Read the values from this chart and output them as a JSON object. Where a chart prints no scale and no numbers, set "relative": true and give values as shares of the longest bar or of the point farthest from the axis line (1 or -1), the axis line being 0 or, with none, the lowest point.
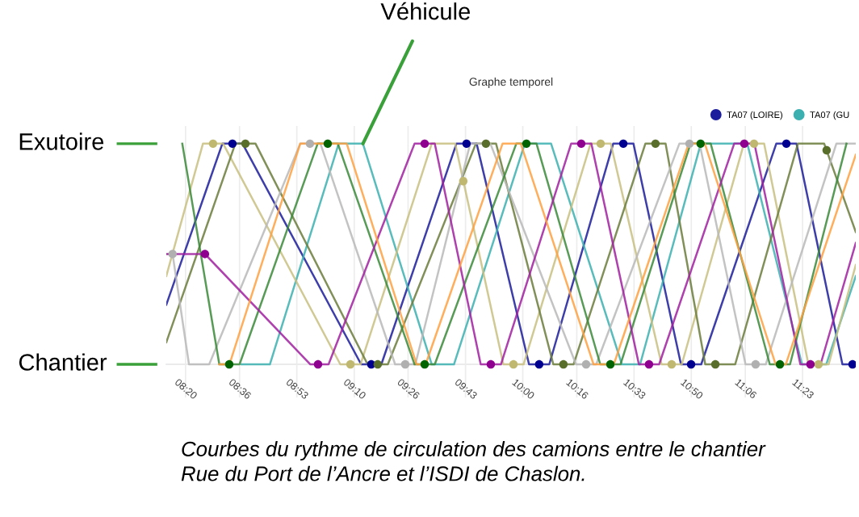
{
  "chart_data": {
    "type": "line",
    "title": "Graphe temporel",
    "xlim": [
      8.238,
      11.646
    ],
    "xticks": [
      {
        "value": 8.333,
        "label": "08:20"
      },
      {
        "value": 8.6,
        "label": "08:36"
      },
      {
        "value": 8.883,
        "label": "08:53"
      },
      {
        "value": 9.167,
        "label": "09:10"
      },
      {
        "value": 9.433,
        "label": "09:26"
      },
      {
        "value": 9.717,
        "label": "09:43"
      },
      {
        "value": 10.0,
        "label": "10:00"
      },
      {
        "value": 10.267,
        "label": "10:16"
      },
      {
        "value": 10.55,
        "label": "10:33"
      },
      {
        "value": 10.833,
        "label": "10:50"
      },
      {
        "value": 11.1,
        "label": "11:06"
      },
      {
        "value": 11.383,
        "label": "11:23"
      }
    ],
    "relative": true,
    "grid": true,
    "legend": "top right",
    "series": [
      {
        "name": "TA07 (LOIRE)",
        "color": "#1c1c9c",
        "x": [
          8.238,
          8.515,
          8.615,
          9.201,
          9.301,
          9.672,
          9.772,
          10.031,
          10.131,
          10.447,
          10.547,
          10.782,
          10.882,
          11.253,
          11.353,
          11.58,
          11.646
        ],
        "values": [
          0.27,
          1,
          1,
          0,
          0,
          1,
          1,
          0,
          0,
          1,
          1,
          0,
          0,
          1,
          1,
          0,
          0
        ]
      },
      {
        "name": "TA07 (GU",
        "color": "#3cb0b0",
        "x": [
          8.61,
          8.75,
          9.09,
          9.21,
          9.55,
          9.66,
          10.01,
          10.14,
          10.49,
          10.58,
          10.88,
          11.11,
          11.38,
          11.5,
          11.646
        ],
        "values": [
          0,
          0,
          1,
          1,
          0,
          0,
          1,
          1,
          0,
          0,
          1,
          1,
          0,
          0,
          0.4
        ]
      },
      {
        "color": "#c8c080",
        "x": [
          8.238,
          8.419,
          8.519,
          9.098,
          9.198,
          9.55,
          9.666,
          9.904,
          10.004,
          10.335,
          10.435,
          10.686,
          10.786,
          11.093,
          11.193,
          11.412,
          11.512,
          11.646
        ],
        "values": [
          0.4,
          1,
          1,
          0,
          0,
          1,
          1,
          0,
          0,
          1,
          1,
          0,
          0,
          1,
          1,
          0,
          0,
          0.45
        ]
      },
      {
        "color": "#6b7d3c",
        "x": [
          8.238,
          8.579,
          8.679,
          9.233,
          9.333,
          9.768,
          9.868,
          10.151,
          10.251,
          10.606,
          10.706,
          10.902,
          11.05,
          11.36,
          11.49,
          11.646
        ],
        "values": [
          0.1,
          1,
          1,
          0,
          0,
          1,
          1,
          0,
          0,
          1,
          1,
          0,
          0,
          1,
          1,
          0.6
        ]
      },
      {
        "color": "#b8b8b8",
        "x": [
          8.238,
          8.269,
          8.35,
          8.45,
          8.9,
          9.0,
          9.369,
          9.469,
          9.74,
          9.84,
          10.263,
          10.363,
          10.774,
          10.874,
          11.101,
          11.201,
          11.55,
          11.646
        ],
        "values": [
          0.5,
          0.5,
          0,
          0,
          1,
          1,
          0,
          0,
          1,
          1,
          0,
          0,
          1,
          1,
          0,
          0,
          1,
          1
        ]
      },
      {
        "color": "#3a8a3a",
        "x": [
          8.317,
          8.5,
          8.6,
          8.986,
          9.086,
          9.465,
          9.565,
          9.968,
          10.068,
          10.383,
          10.483,
          10.829,
          10.929,
          11.221,
          11.321,
          11.6
        ],
        "values": [
          1,
          0,
          0,
          1,
          1,
          0,
          0,
          1,
          1,
          0,
          0,
          1,
          1,
          0,
          0,
          1
        ]
      },
      {
        "color": "#a020a0",
        "x": [
          8.238,
          8.429,
          8.95,
          9.04,
          9.465,
          9.565,
          9.792,
          9.892,
          10.239,
          10.339,
          10.574,
          10.674,
          11.045,
          11.145,
          11.372,
          11.472,
          11.646
        ],
        "values": [
          0.5,
          0.5,
          0,
          0,
          1,
          1,
          0,
          0,
          1,
          1,
          0,
          0,
          1,
          1,
          0,
          0,
          0.55
        ]
      },
      {
        "color": "#ffa040",
        "x": [
          8.5,
          8.55,
          8.9,
          9.13,
          9.475,
          9.52,
          9.9,
          9.99,
          10.35,
          10.45,
          10.82,
          10.9,
          11.25,
          11.3,
          11.646
        ],
        "values": [
          0,
          0,
          1,
          1,
          0,
          0,
          1,
          1,
          0,
          0,
          1,
          1,
          0,
          0,
          0.95
        ]
      },
      {
        "type": "scatter",
        "marker": "circle",
        "x": [
          8.469,
          9.148,
          9.706,
          9.954,
          10.385,
          10.736,
          11.143,
          11.462,
          8.565,
          9.251,
          9.722,
          10.081,
          10.497,
          10.832,
          11.303,
          11.63,
          8.629,
          9.283,
          9.818,
          10.201,
          10.656,
          10.952,
          11.502,
          8.269,
          8.948,
          9.419,
          10.313,
          10.824,
          11.151,
          8.549,
          9.036,
          9.515,
          10.018,
          10.433,
          10.879,
          11.271,
          8.429,
          8.988,
          9.515,
          9.842,
          10.289,
          10.624,
          11.095,
          11.422
        ],
        "values": [
          1,
          0,
          0.83,
          0,
          1,
          0,
          1,
          0,
          1,
          0,
          1,
          0,
          1,
          0,
          1,
          0,
          1,
          0,
          1,
          0,
          1,
          0,
          0.97,
          0.5,
          1,
          0,
          0,
          1,
          0,
          0,
          1,
          0,
          1,
          0,
          1,
          0,
          0.5,
          0,
          1,
          0,
          1,
          0,
          1,
          0
        ],
        "colors": [
          "#c0b870",
          "#c0b870",
          "#c0b870",
          "#c0b870",
          "#c0b870",
          "#c0b870",
          "#c0b870",
          "#c0b870",
          "#000090",
          "#000090",
          "#000090",
          "#000090",
          "#000090",
          "#000090",
          "#000090",
          "#000090",
          "#5a6e2c",
          "#5a6e2c",
          "#5a6e2c",
          "#5a6e2c",
          "#5a6e2c",
          "#5a6e2c",
          "#5a6e2c",
          "#b0b0b0",
          "#b0b0b0",
          "#b0b0b0",
          "#b0b0b0",
          "#b0b0b0",
          "#b0b0b0",
          "#006400",
          "#006400",
          "#006400",
          "#006400",
          "#006400",
          "#006400",
          "#006400",
          "#900090",
          "#900090",
          "#900090",
          "#900090",
          "#900090",
          "#900090",
          "#900090",
          "#900090"
        ]
      }
    ],
    "annotations": [
      {
        "text": "Véhicule",
        "x": 9.21,
        "y": 1
      },
      "Exutoire",
      "Chantier",
      "Courbes du rythme de circulation des camions entre le chantier\nRue du Port de l’Ancre et l’ISDI de Chaslon."
    ]
  }
}
